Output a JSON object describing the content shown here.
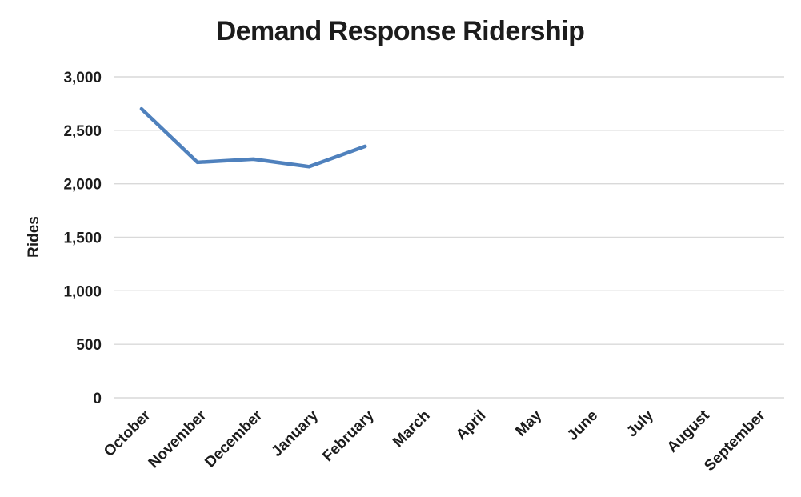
{
  "chart_data": {
    "type": "line",
    "title": "Demand Response Ridership",
    "xlabel": "",
    "ylabel": "Rides",
    "categories": [
      "October",
      "November",
      "December",
      "January",
      "February",
      "March",
      "April",
      "May",
      "June",
      "July",
      "August",
      "September"
    ],
    "series": [
      {
        "name": "Rides",
        "values": [
          2700,
          2200,
          2230,
          2160,
          2350,
          null,
          null,
          null,
          null,
          null,
          null,
          null
        ]
      }
    ],
    "ylim": [
      0,
      3000
    ],
    "ytick_step": 500,
    "ytick_labels": [
      "0",
      "500",
      "1,000",
      "1,500",
      "2,000",
      "2,500",
      "3,000"
    ],
    "grid": "horizontal",
    "legend_position": "none",
    "colors": {
      "line": "#4F81BD",
      "gridline": "#D9D9D9",
      "text": "#1C1C1C",
      "background": "#FFFFFF"
    }
  }
}
